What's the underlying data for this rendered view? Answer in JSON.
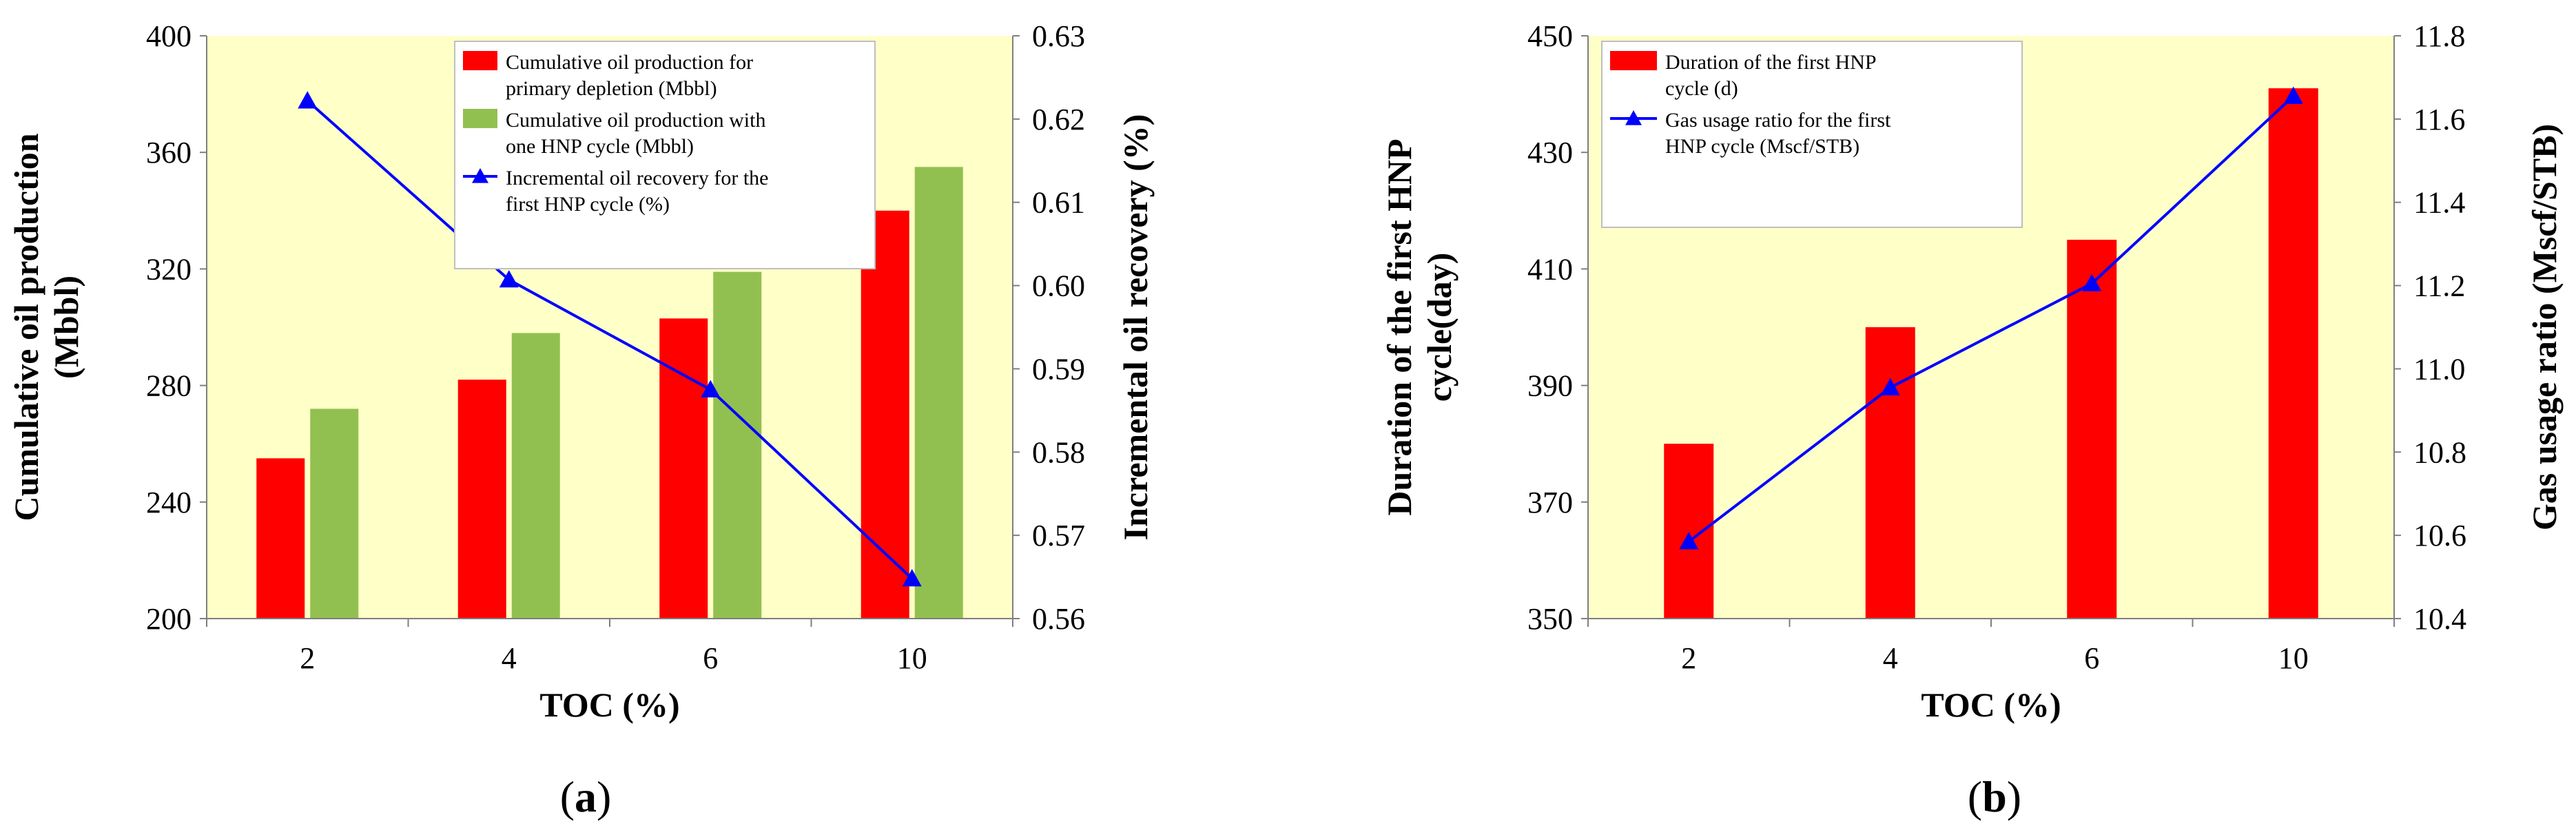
{
  "chart_data": [
    {
      "type": "bar+line",
      "panel_label": {
        "open": "(",
        "letter": "a",
        "close": ")"
      },
      "title": "",
      "xlabel": "TOC (%)",
      "ylabel_lines": [
        "Cumulative oil production",
        "(Mbbl)"
      ],
      "y2label": "Incremental oil recovery (%)",
      "categories": [
        "2",
        "4",
        "6",
        "10"
      ],
      "ylim": [
        200,
        400
      ],
      "yticks": [
        "200",
        "240",
        "280",
        "320",
        "360",
        "400"
      ],
      "y2lim": [
        0.56,
        0.63
      ],
      "y2ticks": [
        "0.56",
        "0.57",
        "0.58",
        "0.59",
        "0.60",
        "0.61",
        "0.62",
        "0.63"
      ],
      "bar_series": [
        {
          "name_lines": [
            "Cumulative oil production for",
            "primary depletion (Mbbl)"
          ],
          "color": "#FF0000",
          "values": [
            255,
            282,
            303,
            340
          ]
        },
        {
          "name_lines": [
            "Cumulative oil production with",
            "one HNP cycle (Mbbl)"
          ],
          "color": "#92C050",
          "values": [
            272,
            298,
            319,
            355
          ]
        }
      ],
      "line_series": [
        {
          "name_lines": [
            "Incremental oil recovery for the",
            "first HNP cycle (%)"
          ],
          "color": "#0000FF",
          "marker": "triangle",
          "values": [
            0.6222,
            0.6007,
            0.5875,
            0.5648
          ]
        }
      ],
      "legend_position": "top-right"
    },
    {
      "type": "bar+line",
      "panel_label": {
        "open": "(",
        "letter": "b",
        "close": ")"
      },
      "title": "",
      "xlabel": "TOC (%)",
      "ylabel_lines": [
        "Duration of the first HNP",
        "cycle(day)"
      ],
      "y2label": "Gas usage ratio (Mscf/STB)",
      "categories": [
        "2",
        "4",
        "6",
        "10"
      ],
      "ylim": [
        350,
        450
      ],
      "yticks": [
        "350",
        "370",
        "390",
        "410",
        "430",
        "450"
      ],
      "y2lim": [
        10.4,
        11.8
      ],
      "y2ticks": [
        "10.4",
        "10.6",
        "10.8",
        "11.0",
        "11.2",
        "11.4",
        "11.6",
        "11.8"
      ],
      "bar_series": [
        {
          "name_lines": [
            "Duration of the first HNP",
            "cycle (d)"
          ],
          "color": "#FF0000",
          "values": [
            380,
            400,
            415,
            441
          ]
        }
      ],
      "line_series": [
        {
          "name_lines": [
            "Gas usage ratio for the first",
            "HNP cycle (Mscf/STB)"
          ],
          "color": "#0000FF",
          "marker": "triangle",
          "values": [
            10.585,
            10.955,
            11.205,
            11.655
          ]
        }
      ],
      "legend_position": "top-left"
    }
  ]
}
